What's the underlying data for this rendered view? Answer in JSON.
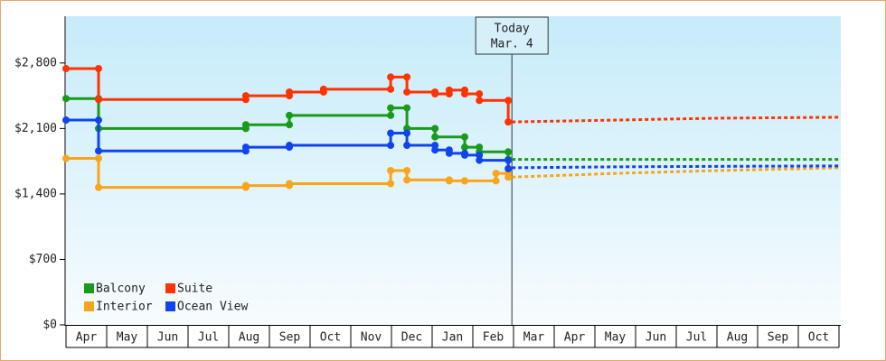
{
  "chart_data": {
    "type": "step-line",
    "x_categories": [
      "Apr",
      "May",
      "Jun",
      "Jul",
      "Aug",
      "Sep",
      "Oct",
      "Nov",
      "Dec",
      "Jan",
      "Feb",
      "Mar",
      "Apr",
      "May",
      "Jun",
      "Jul",
      "Aug",
      "Sep",
      "Oct"
    ],
    "xlim": [
      0,
      19
    ],
    "ylim": [
      0,
      3300
    ],
    "yticks": [
      {
        "value": 0,
        "label": "$0"
      },
      {
        "value": 700,
        "label": "$700"
      },
      {
        "value": 1400,
        "label": "$1,400"
      },
      {
        "value": 2100,
        "label": "$2,100"
      },
      {
        "value": 2800,
        "label": "$2,800"
      }
    ],
    "annotation": {
      "x": 10.96,
      "lines": [
        "Today",
        "Mar. 4"
      ]
    },
    "legend": "lower-left",
    "series": [
      {
        "name": "Balcony",
        "color": "#1a9a1a",
        "x": [
          0,
          0.8,
          4.42,
          5.49,
          7.98,
          8.38,
          9.07,
          9.8,
          10.16,
          10.87
        ],
        "values": [
          2420,
          2100,
          2140,
          2240,
          2320,
          2100,
          2010,
          1900,
          1850,
          1770
        ],
        "forecast": {
          "x": [
            10.96,
            13.5,
            16,
            19
          ],
          "values": [
            1770,
            1770,
            1770,
            1770
          ]
        }
      },
      {
        "name": "Suite",
        "color": "#ff3300",
        "x": [
          0,
          0.8,
          4.42,
          5.49,
          6.33,
          7.98,
          8.38,
          9.07,
          9.42,
          9.8,
          10.16,
          10.87
        ],
        "values": [
          2740,
          2410,
          2450,
          2490,
          2520,
          2650,
          2490,
          2470,
          2510,
          2470,
          2400,
          2170
        ],
        "forecast": {
          "x": [
            10.96,
            13.5,
            16,
            19
          ],
          "values": [
            2170,
            2190,
            2210,
            2220
          ]
        }
      },
      {
        "name": "Interior",
        "color": "#f9a51a",
        "x": [
          0,
          0.8,
          4.42,
          5.49,
          7.98,
          8.38,
          9.42,
          9.8,
          10.57,
          10.87
        ],
        "values": [
          1780,
          1470,
          1490,
          1510,
          1650,
          1550,
          1540,
          1540,
          1620,
          1580
        ],
        "forecast": {
          "x": [
            10.96,
            13.5,
            16,
            19
          ],
          "values": [
            1580,
            1620,
            1650,
            1680
          ]
        }
      },
      {
        "name": "Ocean View",
        "color": "#1144ee",
        "x": [
          0,
          0.8,
          4.42,
          5.49,
          7.98,
          8.38,
          9.07,
          9.42,
          9.8,
          10.16,
          10.87
        ],
        "values": [
          2190,
          1860,
          1900,
          1920,
          2050,
          1920,
          1870,
          1835,
          1815,
          1760,
          1670
        ],
        "forecast": {
          "x": [
            10.96,
            13.5,
            16,
            19
          ],
          "values": [
            1680,
            1690,
            1695,
            1700
          ]
        }
      }
    ]
  }
}
